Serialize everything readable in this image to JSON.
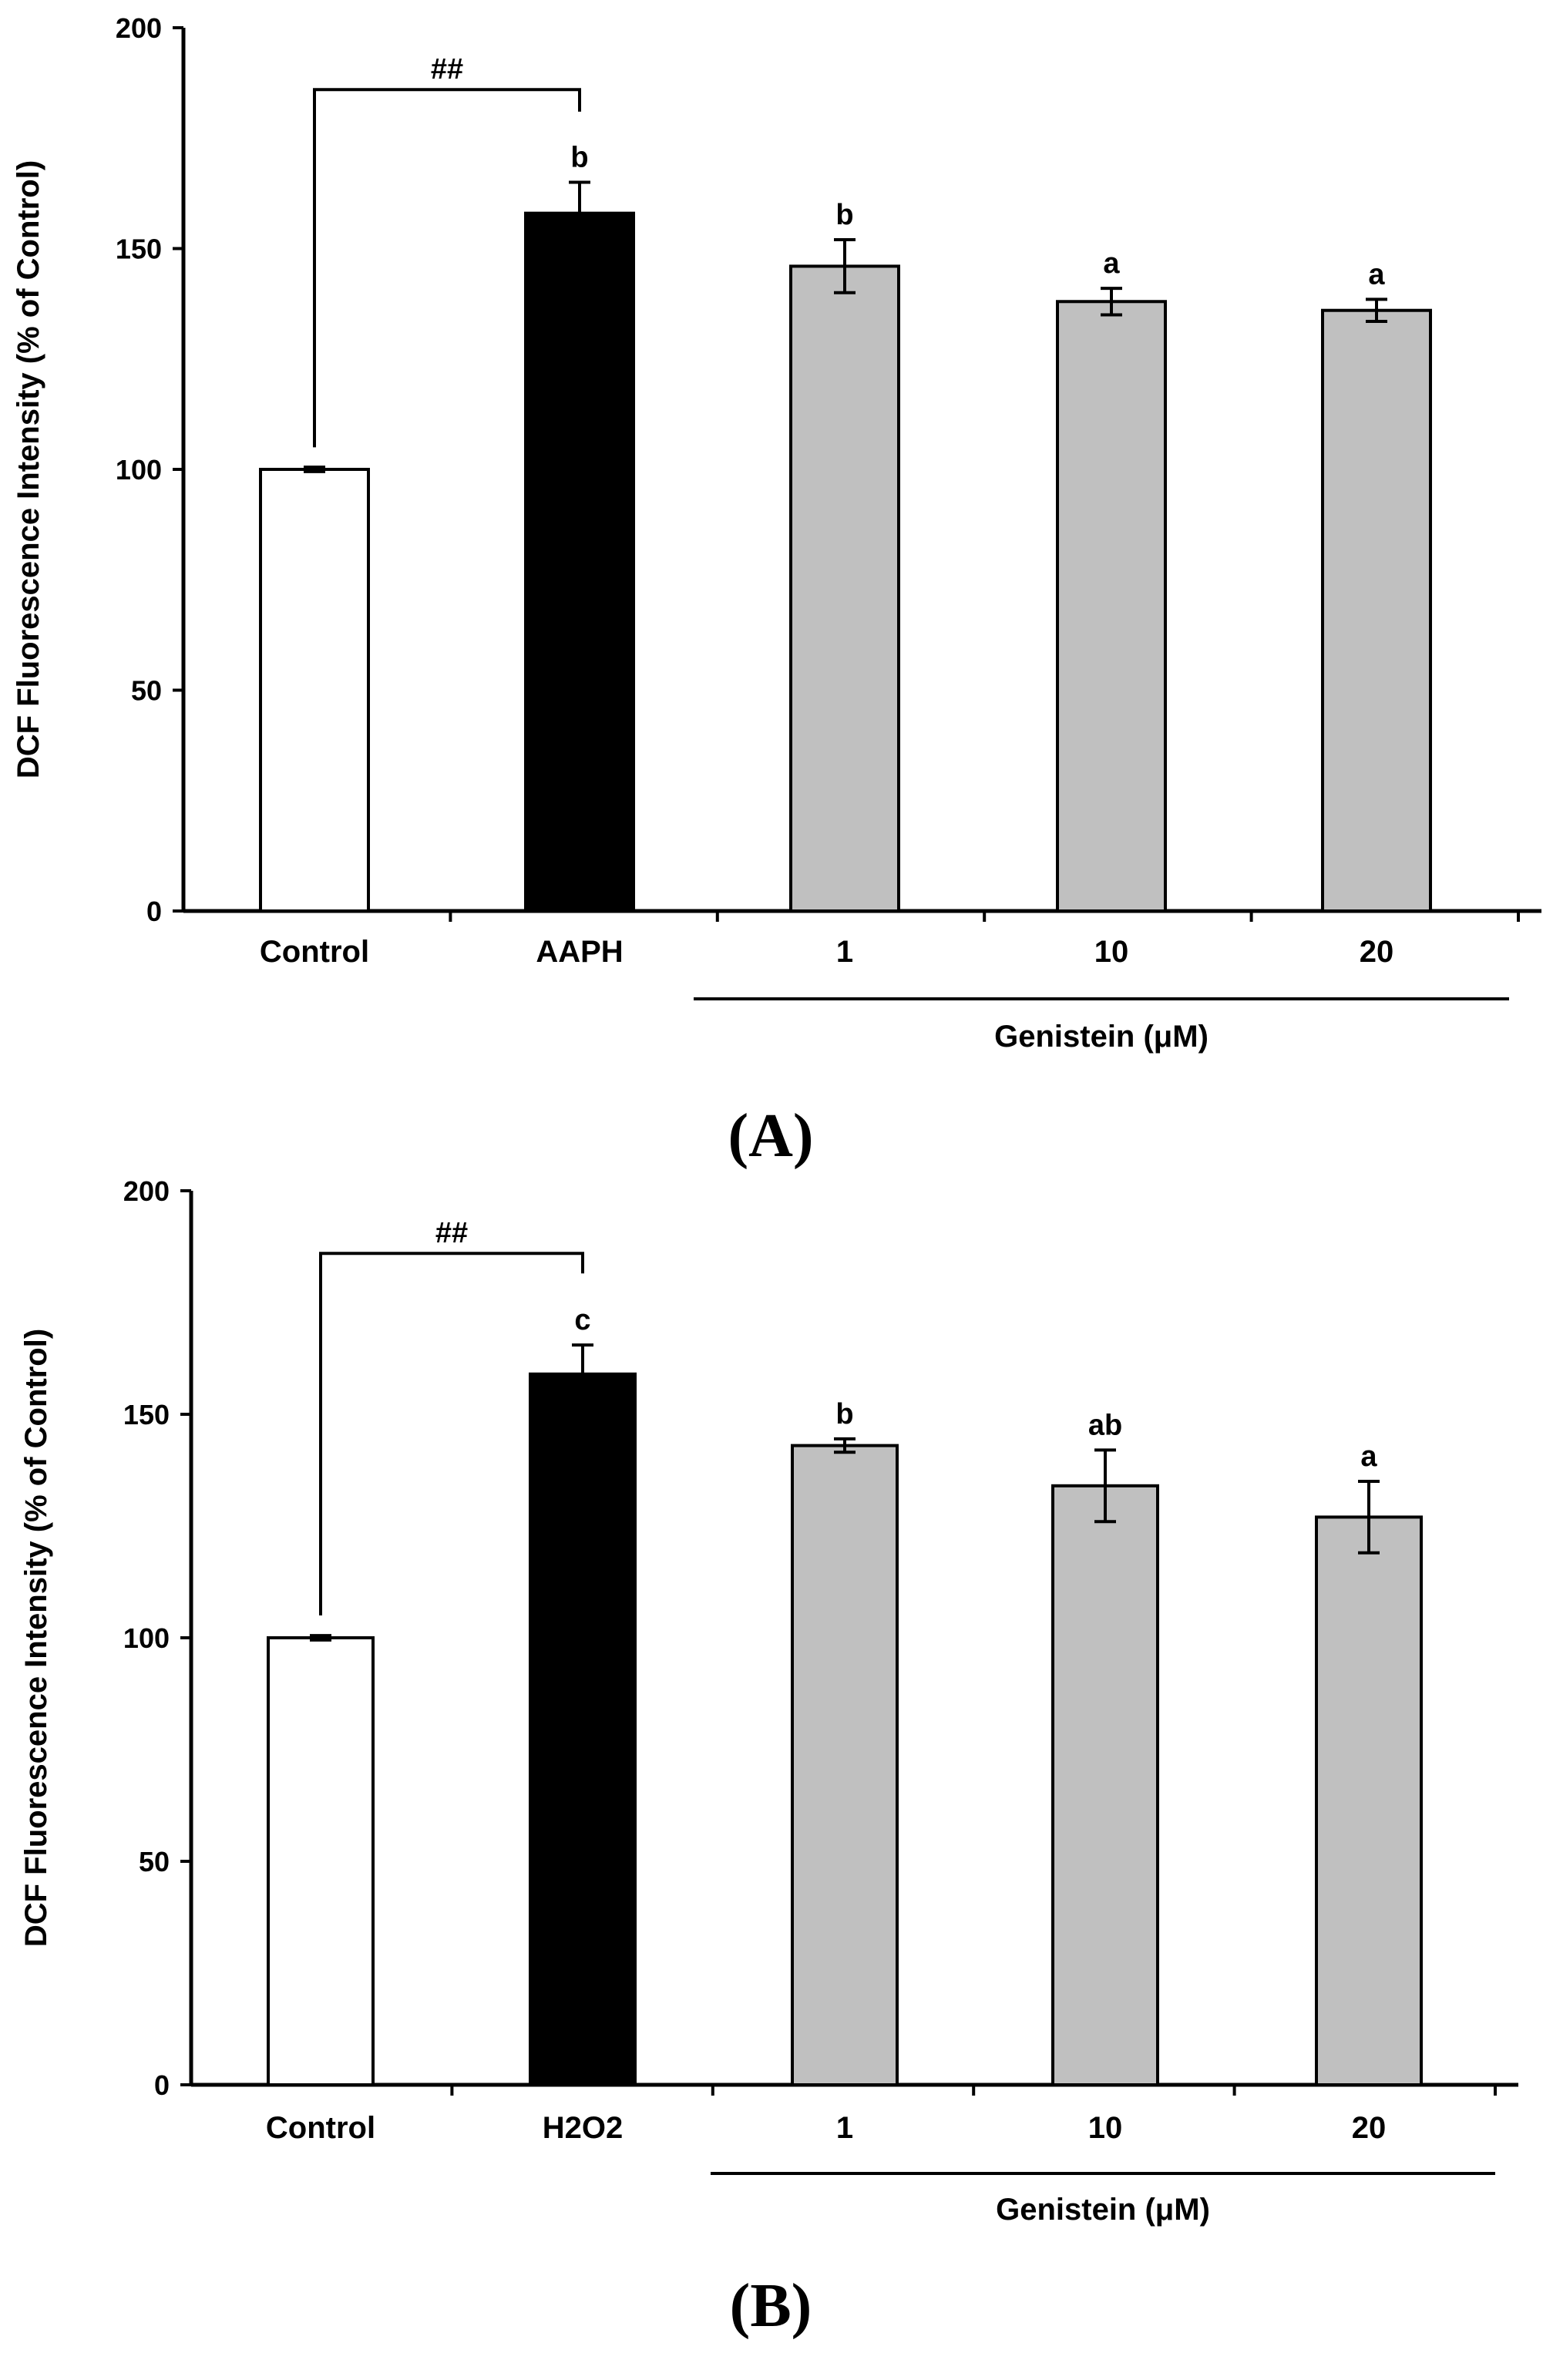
{
  "chart_data": [
    {
      "type": "bar",
      "panel_label": "(A)",
      "ylabel": "DCF Fluorescence Intensity (% of Control)",
      "ylim": [
        0,
        200
      ],
      "yticks": [
        0,
        50,
        100,
        150,
        200
      ],
      "categories": [
        "Control",
        "AAPH",
        "1",
        "10",
        "20"
      ],
      "values": [
        100,
        158,
        146,
        138,
        136
      ],
      "errors": [
        0.5,
        7,
        6,
        3,
        2.5
      ],
      "significance_letters": [
        "",
        "b",
        "b",
        "a",
        "a"
      ],
      "bar_colors": [
        "#ffffff",
        "#000000",
        "#c0c0c0",
        "#c0c0c0",
        "#c0c0c0"
      ],
      "group_label": "Genistein (μM)",
      "bracket_label": "##"
    },
    {
      "type": "bar",
      "panel_label": "(B)",
      "ylabel": "DCF Fluorescence Intensity (% of Control)",
      "ylim": [
        0,
        200
      ],
      "yticks": [
        0,
        50,
        100,
        150,
        200
      ],
      "categories": [
        "Control",
        "H2O2",
        "1",
        "10",
        "20"
      ],
      "values": [
        100,
        159,
        143,
        134,
        127
      ],
      "errors": [
        0.5,
        6.5,
        1.5,
        8,
        8
      ],
      "significance_letters": [
        "",
        "c",
        "b",
        "ab",
        "a"
      ],
      "bar_colors": [
        "#ffffff",
        "#000000",
        "#c0c0c0",
        "#c0c0c0",
        "#c0c0c0"
      ],
      "group_label": "Genistein (μM)",
      "bracket_label": "##"
    }
  ]
}
